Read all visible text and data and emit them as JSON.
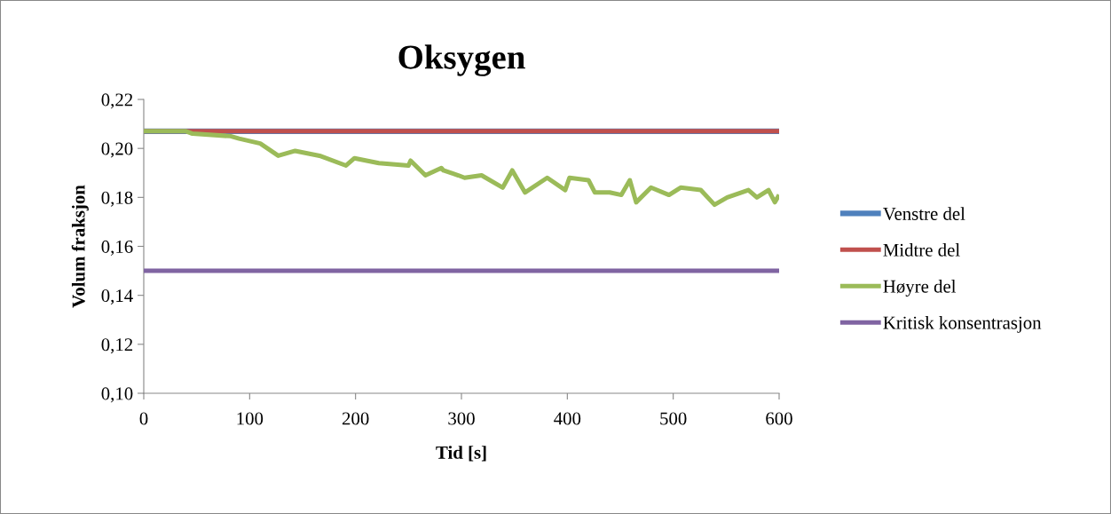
{
  "chart_data": {
    "type": "line",
    "title": "Oksygen",
    "xlabel": "Tid [s]",
    "ylabel": "Volum fraksjon",
    "xlim": [
      0,
      600
    ],
    "xticks": [
      0,
      100,
      200,
      300,
      400,
      500,
      600
    ],
    "ylim": [
      0.1,
      0.22
    ],
    "yticks": [
      {
        "value": 0.1,
        "label": "0,10"
      },
      {
        "value": 0.12,
        "label": "0,12"
      },
      {
        "value": 0.14,
        "label": "0,14"
      },
      {
        "value": 0.16,
        "label": "0,16"
      },
      {
        "value": 0.18,
        "label": "0,18"
      },
      {
        "value": 0.2,
        "label": "0,20"
      },
      {
        "value": 0.22,
        "label": "0,22"
      }
    ],
    "grid": false,
    "legend": "right",
    "marker": "none",
    "line_style": "solid",
    "series": [
      {
        "name": "Venstre del",
        "color": "#4f81bd",
        "x": [
          0,
          600
        ],
        "values": [
          0.207,
          0.207
        ]
      },
      {
        "name": "Midtre del",
        "color": "#c0504d",
        "x": [
          0,
          600
        ],
        "values": [
          0.207,
          0.207
        ]
      },
      {
        "name": "Høyre del",
        "color": "#9bbb59",
        "x": [
          0,
          40,
          46,
          82,
          90,
          110,
          127,
          143,
          166,
          191,
          199,
          222,
          250,
          252,
          266,
          281,
          283,
          297,
          303,
          319,
          339,
          348,
          360,
          381,
          398,
          402,
          420,
          426,
          440,
          451,
          459,
          465,
          479,
          496,
          507,
          526,
          539,
          551,
          571,
          579,
          590,
          596,
          600
        ],
        "values": [
          0.207,
          0.207,
          0.206,
          0.205,
          0.204,
          0.202,
          0.197,
          0.199,
          0.197,
          0.193,
          0.196,
          0.194,
          0.193,
          0.195,
          0.189,
          0.192,
          0.191,
          0.189,
          0.188,
          0.189,
          0.184,
          0.191,
          0.182,
          0.188,
          0.183,
          0.188,
          0.187,
          0.182,
          0.182,
          0.181,
          0.187,
          0.178,
          0.184,
          0.181,
          0.184,
          0.183,
          0.177,
          0.18,
          0.183,
          0.18,
          0.183,
          0.178,
          0.181
        ]
      },
      {
        "name": "Kritisk konsentrasjon",
        "color": "#8064a2",
        "x": [
          0,
          600
        ],
        "values": [
          0.15,
          0.15
        ]
      }
    ]
  }
}
